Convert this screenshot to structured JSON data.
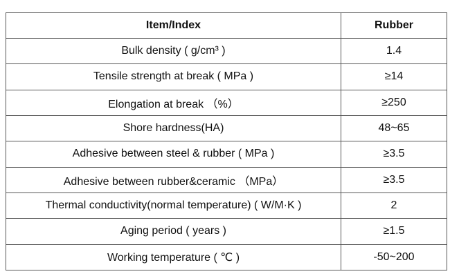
{
  "table": {
    "header": [
      "Item/Index",
      "Rubber"
    ],
    "rows": [
      [
        "Bulk density ( g/cm³ )",
        "1.4"
      ],
      [
        "Tensile strength at break ( MPa )",
        "≥14"
      ],
      [
        "Elongation at break （%）",
        "≥250"
      ],
      [
        "Shore hardness(HA)",
        "48~65"
      ],
      [
        "Adhesive between steel & rubber ( MPa )",
        "≥3.5"
      ],
      [
        "Adhesive between rubber&ceramic （MPa）",
        "≥3.5"
      ],
      [
        "Thermal conductivity(normal temperature) ( W/M·K )",
        "2"
      ],
      [
        "Aging period ( years )",
        "≥1.5"
      ],
      [
        "Working temperature ( ℃ )",
        "-50~200"
      ]
    ]
  }
}
